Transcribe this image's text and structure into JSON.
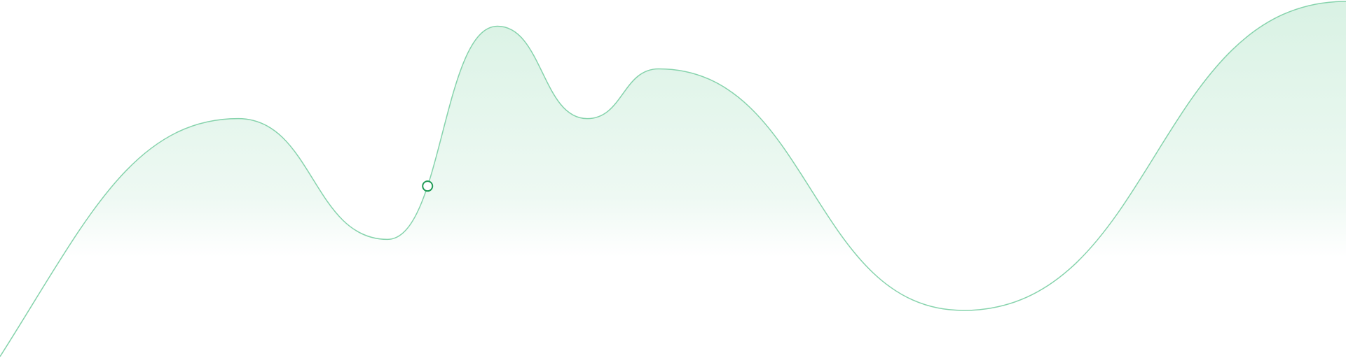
{
  "chart_data": {
    "type": "area",
    "title": "",
    "xlabel": "",
    "ylabel": "",
    "grid": false,
    "legend": "none",
    "series": [
      {
        "values": [
          0,
          67,
          33,
          93,
          67,
          81,
          13,
          100
        ]
      }
    ],
    "ylim": [
      0,
      100
    ],
    "highlight": {
      "value": 48
    },
    "colors": {
      "line": "#86d3ac",
      "fill_top": "#d9f2e4",
      "fill_bottom": "#ffffff",
      "marker_stroke": "#1f9a55",
      "marker_fill": "#ffffff"
    }
  }
}
